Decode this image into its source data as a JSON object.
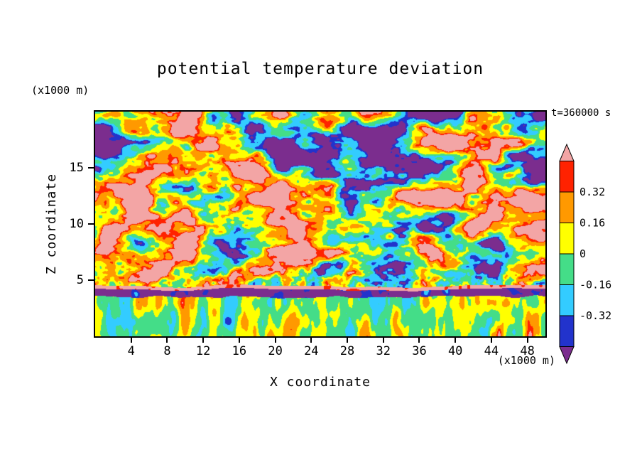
{
  "chart_data": {
    "type": "heatmap",
    "title": "potential temperature deviation",
    "time_annotation": "t=360000 s",
    "xlabel": "X coordinate",
    "x_unit": "(x1000 m)",
    "ylabel": "Z coordinate",
    "y_unit": "(x1000 m)",
    "x_range": [
      0,
      50
    ],
    "y_range": [
      0,
      20
    ],
    "x_ticks": [
      4,
      8,
      12,
      16,
      20,
      24,
      28,
      32,
      36,
      40,
      44,
      48
    ],
    "y_ticks": [
      5,
      10,
      15
    ],
    "contour_levels": [
      -0.4,
      -0.32,
      -0.16,
      0,
      0.16,
      0.32,
      0.4
    ],
    "level_colors": [
      "#7B2D8E",
      "#2233CC",
      "#33CCFF",
      "#44DD88",
      "#FFFF00",
      "#FF9900",
      "#FF2200",
      "#F3A5A5"
    ],
    "colorbar_labels": [
      "0.32",
      "0.16",
      "0",
      "-0.16",
      "-0.32"
    ],
    "grid": false,
    "legend_position": "right-colorbar",
    "field_description": "2-D filled-contour field of potential temperature deviation at t=360000 s: large-amplitude layered turbulence above z=4.5 km spanning the full color range, a sharp dark (negative) inversion band near z=3.5-4.3 km capped by a thin warm (salmon) layer, and weaker convective plumes (green/yellow/cyan/orange) below z=3.5 km; field is procedurally approximated, exact gridpoint values not readable from the image"
  }
}
